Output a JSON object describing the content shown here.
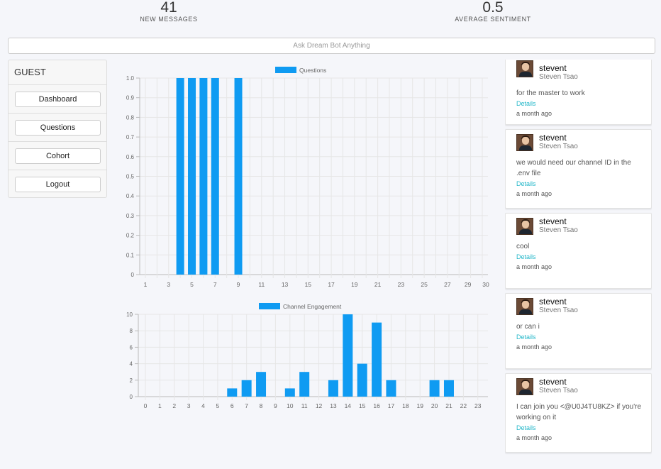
{
  "stats": {
    "messages": {
      "value": "41",
      "label": "NEW MESSAGES"
    },
    "sentiment": {
      "value": "0.5",
      "label": "AVERAGE SENTIMENT"
    }
  },
  "search": {
    "placeholder": "Ask Dream Bot Anything"
  },
  "sidebar": {
    "title": "GUEST",
    "items": [
      {
        "label": "Dashboard"
      },
      {
        "label": "Questions"
      },
      {
        "label": "Cohort"
      },
      {
        "label": "Logout"
      }
    ]
  },
  "colors": {
    "bar": "#0f9bf2",
    "grid": "#e6e6e6",
    "axis": "#bbbbbb",
    "link": "#23b7c9"
  },
  "feed": [
    {
      "user": "stevent",
      "name": "Steven Tsao",
      "text": "for the master to work",
      "details": "Details",
      "time": "a month ago"
    },
    {
      "user": "stevent",
      "name": "Steven Tsao",
      "text": "we would need our channel ID in the .env file",
      "details": "Details",
      "time": "a month ago"
    },
    {
      "user": "stevent",
      "name": "Steven Tsao",
      "text": "cool",
      "details": "Details",
      "time": "a month ago"
    },
    {
      "user": "stevent",
      "name": "Steven Tsao",
      "text": "or can i",
      "details": "Details",
      "time": "a month ago"
    },
    {
      "user": "stevent",
      "name": "Steven Tsao",
      "text": "I can join you <@U0J4TU8KZ> if you're working on it",
      "details": "Details",
      "time": "a month ago"
    }
  ],
  "chart_data": [
    {
      "type": "bar",
      "legend": "Questions",
      "legend_position": "top",
      "grid": true,
      "categories": [
        1,
        2,
        3,
        4,
        5,
        6,
        7,
        8,
        9,
        10,
        11,
        12,
        13,
        14,
        15,
        16,
        17,
        18,
        19,
        20,
        21,
        22,
        23,
        24,
        25,
        26,
        27,
        28,
        29,
        30
      ],
      "tick_labels": [
        "1",
        "3",
        "5",
        "7",
        "9",
        "11",
        "13",
        "15",
        "17",
        "19",
        "21",
        "23",
        "25",
        "27",
        "29",
        "30"
      ],
      "y_ticks": [
        "0",
        "0.1",
        "0.2",
        "0.3",
        "0.4",
        "0.5",
        "0.6",
        "0.7",
        "0.8",
        "0.9",
        "1.0"
      ],
      "series": [
        {
          "name": "Questions",
          "values": [
            0,
            0,
            0,
            1,
            1,
            1,
            1,
            0,
            1,
            0,
            0,
            0,
            0,
            0,
            0,
            0,
            0,
            0,
            0,
            0,
            0,
            0,
            0,
            0,
            0,
            0,
            0,
            0,
            0,
            0
          ]
        }
      ],
      "ylim": [
        0,
        1
      ]
    },
    {
      "type": "bar",
      "legend": "Channel Engagement",
      "legend_position": "top",
      "grid": true,
      "categories": [
        0,
        1,
        2,
        3,
        4,
        5,
        6,
        7,
        8,
        9,
        10,
        11,
        12,
        13,
        14,
        15,
        16,
        17,
        18,
        19,
        20,
        21,
        22,
        23
      ],
      "tick_labels": [
        "0",
        "1",
        "2",
        "3",
        "4",
        "5",
        "6",
        "7",
        "8",
        "9",
        "10",
        "11",
        "12",
        "13",
        "14",
        "15",
        "16",
        "17",
        "18",
        "19",
        "20",
        "21",
        "22",
        "23"
      ],
      "y_ticks": [
        "0",
        "2",
        "4",
        "6",
        "8",
        "10"
      ],
      "series": [
        {
          "name": "Channel Engagement",
          "values": [
            0,
            0,
            0,
            0,
            0,
            0,
            1,
            2,
            3,
            0,
            1,
            3,
            0,
            2,
            10,
            4,
            9,
            2,
            0,
            0,
            2,
            2,
            0,
            0
          ]
        }
      ],
      "ylim": [
        0,
        10
      ]
    }
  ]
}
